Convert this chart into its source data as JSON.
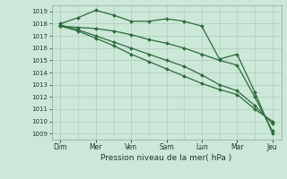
{
  "bg_color": "#cce8d8",
  "grid_color": "#aaccbb",
  "line_color": "#2d6b3c",
  "line_width": 0.9,
  "marker_size": 2.0,
  "xlabel_text": "Pression niveau de la mer( hPa )",
  "ylim": [
    1008.5,
    1019.5
  ],
  "yticks": [
    1009,
    1010,
    1011,
    1012,
    1013,
    1014,
    1015,
    1016,
    1017,
    1018,
    1019
  ],
  "xtick_labels": [
    "Dim",
    "Mer",
    "Ven",
    "Sam",
    "Lun",
    "Mar",
    "Jeu"
  ],
  "xtick_positions": [
    0,
    2,
    4,
    6,
    8,
    10,
    12
  ],
  "xminor_positions": [
    1,
    3,
    5,
    7,
    9,
    11
  ],
  "series": [
    [
      1018.0,
      1018.5,
      1019.1,
      1018.7,
      1018.2,
      1018.2,
      1018.4,
      1018.2,
      1017.8,
      1015.1,
      1015.5,
      1012.4,
      1009.0
    ],
    [
      1017.8,
      1017.7,
      1017.6,
      1017.4,
      1017.1,
      1016.7,
      1016.4,
      1016.0,
      1015.5,
      1015.0,
      1014.6,
      1012.0,
      1009.2
    ],
    [
      1017.9,
      1017.5,
      1017.0,
      1016.5,
      1016.0,
      1015.5,
      1015.0,
      1014.5,
      1013.8,
      1013.0,
      1012.5,
      1011.3,
      1009.8
    ],
    [
      1017.8,
      1017.4,
      1016.8,
      1016.2,
      1015.5,
      1014.9,
      1014.3,
      1013.7,
      1013.1,
      1012.6,
      1012.2,
      1011.0,
      1010.0
    ]
  ]
}
